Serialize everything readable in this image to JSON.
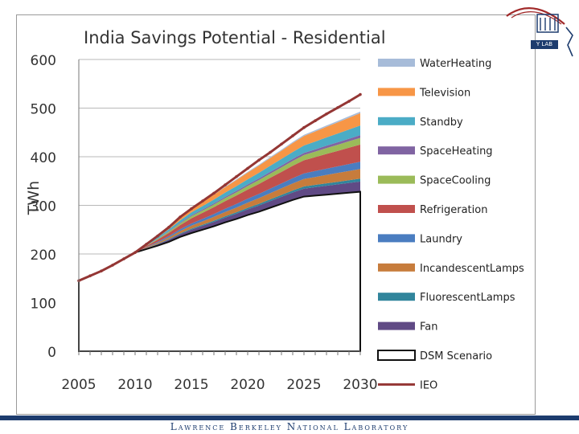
{
  "footer": {
    "lab_name": "Lawrence Berkeley National Laboratory"
  },
  "logo": {
    "badge_text": "Y LAB"
  },
  "chart_data": {
    "type": "area",
    "title": "India Savings Potential - Residential",
    "ylabel": "TWh",
    "xlabel": "",
    "x": [
      2005,
      2006,
      2007,
      2008,
      2009,
      2010,
      2011,
      2012,
      2013,
      2014,
      2015,
      2016,
      2017,
      2018,
      2019,
      2020,
      2021,
      2022,
      2023,
      2024,
      2025,
      2026,
      2027,
      2028,
      2029,
      2030
    ],
    "xticks": [
      2005,
      2010,
      2015,
      2020,
      2025,
      2030
    ],
    "ylim": [
      0,
      600
    ],
    "yticks": [
      0,
      100,
      200,
      300,
      400,
      500,
      600
    ],
    "base_series": {
      "name": "DSM Scenario",
      "values": [
        145,
        155,
        165,
        177,
        190,
        203,
        210,
        217,
        225,
        235,
        243,
        250,
        257,
        265,
        272,
        280,
        287,
        295,
        303,
        311,
        318,
        320,
        322,
        324,
        326,
        328
      ]
    },
    "stack_series": [
      {
        "name": "Fan",
        "color": "#604a85",
        "values": [
          0,
          0,
          0,
          0,
          0,
          0,
          1.4,
          2.9,
          4.3,
          5.7,
          7.1,
          8,
          9,
          9.9,
          10.8,
          11.7,
          12.7,
          13.6,
          14.5,
          15.4,
          16.4,
          17.3,
          18.3,
          19.2,
          20.1,
          21
        ]
      },
      {
        "name": "Fluorescent Lamps",
        "color": "#31859c",
        "values": [
          0,
          0,
          0,
          0,
          0,
          0,
          0.4,
          0.8,
          1.2,
          1.6,
          2,
          2.2,
          2.5,
          2.7,
          3,
          3.2,
          3.5,
          3.8,
          4,
          4.2,
          4.5,
          4.8,
          5,
          5.3,
          5.5,
          5.8
        ]
      },
      {
        "name": "Incandescent Lamps",
        "color": "#c77c3c",
        "values": [
          0,
          0,
          0,
          0,
          0,
          0,
          1.2,
          2.4,
          3.6,
          4.8,
          6,
          6.9,
          7.9,
          8.8,
          9.8,
          10.7,
          11.6,
          12.6,
          13.5,
          14.5,
          15.4,
          16.3,
          17.3,
          18.2,
          19.2,
          20.1
        ]
      },
      {
        "name": "Laundry",
        "color": "#4a7dc0",
        "values": [
          0,
          0,
          0,
          0,
          0,
          0,
          0.9,
          1.8,
          2.7,
          3.6,
          4.5,
          5.1,
          5.8,
          6.5,
          7.2,
          7.9,
          8.6,
          9.3,
          10,
          10.7,
          11.4,
          12.1,
          12.8,
          13.4,
          14.1,
          14.8
        ]
      },
      {
        "name": "Refrigeration",
        "color": "#c0504d",
        "values": [
          0,
          0,
          0,
          0,
          0,
          0,
          2.2,
          4.3,
          6.5,
          8.6,
          10.8,
          12.4,
          14,
          15.7,
          17.3,
          18.9,
          20.6,
          22.2,
          23.8,
          25.5,
          27.1,
          28.7,
          30.4,
          32,
          33.6,
          35.2
        ]
      },
      {
        "name": "Space Cooling",
        "color": "#9bbb59",
        "values": [
          0,
          0,
          0,
          0,
          0,
          0,
          0.9,
          1.7,
          2.6,
          3.4,
          4.3,
          4.9,
          5.5,
          6.2,
          6.8,
          7.4,
          8.1,
          8.7,
          9.3,
          10,
          10.6,
          11.3,
          11.9,
          12.5,
          13.2,
          13.8
        ]
      },
      {
        "name": "Space Heating",
        "color": "#8064a2",
        "values": [
          0,
          0,
          0,
          0,
          0,
          0,
          0.4,
          0.7,
          1.1,
          1.4,
          1.8,
          2,
          2.3,
          2.5,
          2.8,
          3.1,
          3.3,
          3.6,
          3.8,
          4.1,
          4.4,
          4.6,
          4.9,
          5.1,
          5.4,
          5.7
        ]
      },
      {
        "name": "Standby",
        "color": "#4bacc6",
        "values": [
          0,
          0,
          0,
          0,
          0,
          0,
          1.2,
          2.5,
          3.7,
          4.9,
          6.1,
          7,
          7.9,
          8.9,
          9.8,
          10.7,
          11.6,
          12.5,
          13.4,
          14.4,
          15.3,
          16.2,
          17.1,
          18,
          19,
          19.9
        ]
      },
      {
        "name": "Television",
        "color": "#f79646",
        "values": [
          0,
          0,
          0,
          0,
          0,
          0,
          1.6,
          3.1,
          4.7,
          6.3,
          7.8,
          9,
          10.1,
          11.3,
          12.5,
          13.6,
          14.8,
          16,
          17.1,
          18.3,
          19.5,
          20.6,
          21.8,
          23,
          24.1,
          25.3
        ]
      },
      {
        "name": "Water Heating",
        "color": "#a7bcd9",
        "values": [
          0,
          0,
          0,
          0,
          0,
          0,
          0.2,
          0.4,
          0.6,
          0.8,
          1,
          1.1,
          1.3,
          1.4,
          1.6,
          1.7,
          1.9,
          2,
          2.2,
          2.3,
          2.5,
          2.6,
          2.8,
          2.9,
          3.1,
          3.2
        ]
      }
    ],
    "line_series": {
      "name": "IEO",
      "color": "#943634",
      "values": [
        145,
        155,
        165,
        177,
        190,
        203,
        220,
        237,
        255,
        276,
        293,
        309,
        325,
        342,
        359,
        376,
        393,
        409,
        426,
        443,
        460,
        474,
        488,
        501,
        514,
        528
      ]
    },
    "legend": {
      "position": "right",
      "entries": [
        {
          "label": "WaterHeating",
          "color": "#a7bcd9",
          "kind": "area"
        },
        {
          "label": "Television",
          "color": "#f79646",
          "kind": "area"
        },
        {
          "label": "Standby",
          "color": "#4bacc6",
          "kind": "area"
        },
        {
          "label": "SpaceHeating",
          "color": "#8064a2",
          "kind": "area"
        },
        {
          "label": "SpaceCooling",
          "color": "#9bbb59",
          "kind": "area"
        },
        {
          "label": "Refrigeration",
          "color": "#c0504d",
          "kind": "area"
        },
        {
          "label": "Laundry",
          "color": "#4a7dc0",
          "kind": "area"
        },
        {
          "label": "IncandescentLamps",
          "color": "#c77c3c",
          "kind": "area"
        },
        {
          "label": "FluorescentLamps",
          "color": "#31859c",
          "kind": "area"
        },
        {
          "label": "Fan",
          "color": "#604a85",
          "kind": "area"
        },
        {
          "label": "DSM Scenario",
          "color": "#ffffff",
          "kind": "outline"
        },
        {
          "label": "IEO",
          "color": "#943634",
          "kind": "line"
        }
      ]
    },
    "grid": true
  }
}
